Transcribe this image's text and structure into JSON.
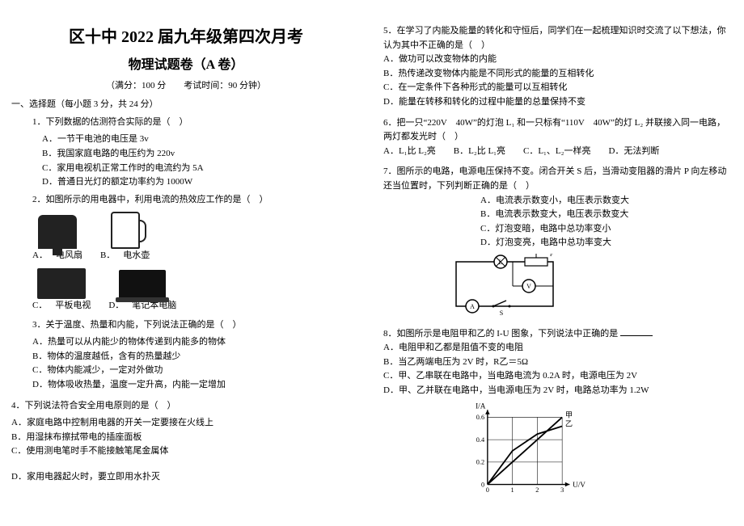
{
  "doc": {
    "title": "区十中 2022 届九年级第四次月考",
    "subtitle": "物理试题卷（A 卷）",
    "meta": "（满分：100 分　　考试时间：90 分钟）",
    "section1": "一、选择题（每小题 3 分，共 24 分）"
  },
  "left": {
    "q1": {
      "stem": "1．下列数据的估测符合实际的是（　）",
      "A": "A．一节干电池的电压是 3v",
      "B": "B．我国家庭电路的电压约为 220v",
      "C": "C．家用电视机正常工作时的电流约为 5A",
      "D": "D．普通日光灯的额定功率约为 1000W"
    },
    "q2": {
      "stem": "2．如图所示的用电器中，利用电流的热效应工作的是（　）",
      "labels": {
        "A": "A．",
        "fan": "电风扇",
        "B": "B．",
        "kettle": "电水壶",
        "C": "C．",
        "tv": "平板电视",
        "D": "D．",
        "laptop": "笔记本电脑"
      }
    },
    "q3": {
      "stem": "3．关于温度、热量和内能，下列说法正确的是（　）",
      "A": "A．热量可以从内能少的物体传递到内能多的物体",
      "B": "B．物体的温度越低，含有的热量越少",
      "C": "C．物体内能减少，一定对外做功",
      "D": "D．物体吸收热量，温度一定升高，内能一定增加"
    },
    "q4": {
      "stem": "4．下列说法符合安全用电原则的是（　）",
      "A": "A．家庭电路中控制用电器的开关一定要接在火线上",
      "B": "B．用湿抹布擦拭带电的插座面板",
      "C": "C．使用测电笔时手不能接触笔尾金属体",
      "D": "D．家用电器起火时，要立即用水扑灭"
    }
  },
  "right": {
    "q5": {
      "stem": "5．在学习了内能及能量的转化和守恒后，同学们在一起梳理知识时交流了以下想法，你认为其中不正确的是（　）",
      "A": "A．做功可以改变物体的内能",
      "B": "B．热传递改变物体内能是不同形式的能量的互相转化",
      "C": "C．在一定条件下各种形式的能量可以互相转化",
      "D": "D．能量在转移和转化的过程中能量的总量保持不变"
    },
    "q6": {
      "stem": "6．把一只“220V　40W”的灯泡 L₁ 和一只标有“110V　40W”的灯 L₂ 并联接入同一电路，两灯都发光时（　）",
      "opts": "A．L₁比 L₂亮　　B．L₂比 L₁亮　　C．L₁、L₂一样亮　　D．无法判断"
    },
    "q7": {
      "stem": "7．图所示的电路，电源电压保持不变。闭合开关 S 后，当滑动变阻器的滑片 P 向左移动还当位置时，下列判断正确的是（　）",
      "A": "A．电流表示数变小，电压表示数变大",
      "B": "B．电流表示数变大，电压表示数变大",
      "C": "C．灯泡变暗，电路中总功率变小",
      "D": "D．灯泡变亮，电路中总功率变大"
    },
    "q8": {
      "stem": "8．如图所示是电阻甲和乙的 I-U 图象，下列说法中正确的是",
      "A": "A．电阻甲和乙都是阻值不变的电阻",
      "B": "B．当乙两端电压为 2V 时，R乙＝5Ω",
      "C": "C．甲、乙串联在电路中，当电路电流为 0.2A 时，电源电压为 2V",
      "D": "D．甲、乙并联在电路中，当电源电压为 2V 时，电路总功率为 1.2W"
    },
    "chart": {
      "type": "line",
      "xlabel": "U/V",
      "ylabel": "I/A",
      "xlim": [
        0,
        3
      ],
      "ylim": [
        0,
        0.6
      ],
      "xticks": [
        0,
        1,
        2,
        3
      ],
      "yticks": [
        0,
        0.2,
        0.4,
        0.6
      ],
      "series": [
        {
          "name": "甲",
          "color": "#000000",
          "points": [
            [
              0,
              0
            ],
            [
              1,
              0.2
            ],
            [
              2,
              0.4
            ],
            [
              3,
              0.6
            ]
          ],
          "width": 2
        },
        {
          "name": "乙",
          "color": "#000000",
          "points": [
            [
              0,
              0
            ],
            [
              1,
              0.3
            ],
            [
              2,
              0.45
            ],
            [
              3,
              0.52
            ]
          ],
          "width": 2
        }
      ],
      "grid_color": "#000000",
      "background_color": "#ffffff",
      "label_fontsize": 10
    },
    "circuit": {
      "components": [
        "A-ammeter",
        "L-lamp",
        "V-voltmeter",
        "R-rheostat",
        "S-switch",
        "power"
      ],
      "stroke": "#000000",
      "stroke_width": 1.5,
      "background": "#ffffff"
    }
  },
  "colors": {
    "text": "#000000",
    "bg": "#ffffff"
  }
}
